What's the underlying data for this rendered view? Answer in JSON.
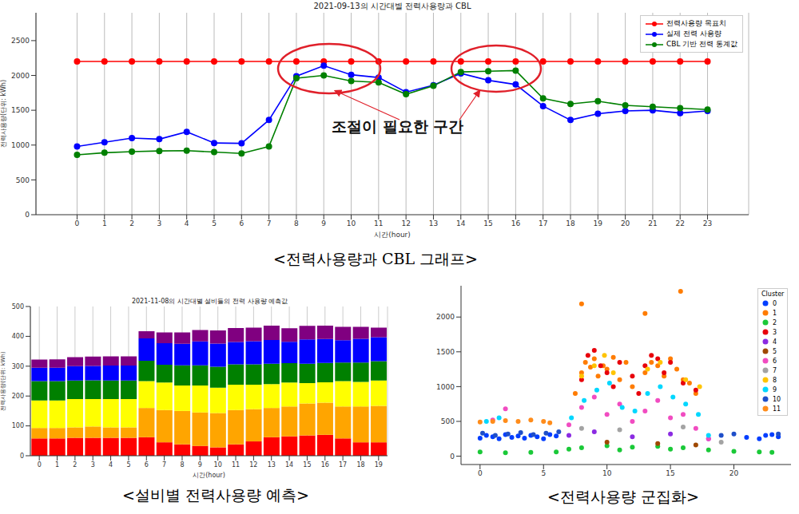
{
  "chart_data": [
    {
      "type": "line",
      "title": "2021-09-13의 시간대별 전력사용량과 CBL",
      "caption": "<전력사용량과 CBL 그래프>",
      "xlabel": "시간(hour)",
      "ylabel": "전력사용량(단위: kWh)",
      "annotations": [
        "조절이 필요한 구간"
      ],
      "x": [
        0,
        1,
        2,
        3,
        4,
        5,
        6,
        7,
        8,
        9,
        10,
        11,
        12,
        13,
        14,
        15,
        16,
        17,
        18,
        19,
        20,
        21,
        22,
        23
      ],
      "xlim": [
        -1.5,
        24.5
      ],
      "xticks": [
        0,
        1,
        2,
        3,
        4,
        5,
        6,
        7,
        8,
        9,
        10,
        11,
        12,
        13,
        14,
        15,
        16,
        17,
        18,
        19,
        20,
        21,
        22,
        23
      ],
      "ylim": [
        0,
        2900
      ],
      "yticks": [
        0,
        500,
        1000,
        1500,
        2000,
        2500
      ],
      "grid": true,
      "legend": "upper right",
      "marker": "o",
      "series": [
        {
          "name": "전력사용량 목표치",
          "color": "#ff0000",
          "values": [
            2200,
            2200,
            2200,
            2200,
            2200,
            2200,
            2200,
            2200,
            2200,
            2200,
            2200,
            2200,
            2200,
            2200,
            2200,
            2200,
            2200,
            2200,
            2200,
            2200,
            2200,
            2200,
            2200,
            2200
          ]
        },
        {
          "name": "실제 전력 사용량",
          "color": "#0000ff",
          "values": [
            980,
            1040,
            1100,
            1085,
            1190,
            1030,
            1025,
            1360,
            1990,
            2140,
            2010,
            1970,
            1760,
            1860,
            2030,
            1930,
            1870,
            1560,
            1360,
            1450,
            1490,
            1500,
            1460,
            1490
          ]
        },
        {
          "name": "CBL 기반 전력 통계값",
          "color": "#008000",
          "values": [
            860,
            890,
            905,
            915,
            920,
            900,
            880,
            980,
            1960,
            2000,
            1920,
            1900,
            1730,
            1850,
            2050,
            2060,
            2070,
            1670,
            1590,
            1630,
            1570,
            1550,
            1530,
            1510
          ]
        }
      ]
    },
    {
      "type": "bar",
      "title": "2021-11-08의 시간대별 설비들의 전력 사용량 예측값",
      "caption": "<설비별 전력사용량 예측>",
      "xlabel": "시간(hour)",
      "ylabel": "전력사용량(단위: kWh)",
      "stacked": true,
      "grid": true,
      "categories": [
        "0",
        "1",
        "2",
        "3",
        "4",
        "5",
        "6",
        "7",
        "8",
        "9",
        "10",
        "11",
        "12",
        "13",
        "14",
        "15",
        "16",
        "17",
        "18",
        "19"
      ],
      "ylim": [
        0,
        500
      ],
      "yticks": [
        0,
        100,
        200,
        300,
        400,
        500
      ],
      "series": [
        {
          "color": "#ff0000",
          "values": [
            58,
            58,
            60,
            60,
            60,
            60,
            62,
            45,
            38,
            33,
            28,
            38,
            48,
            62,
            65,
            68,
            70,
            58,
            45,
            45
          ]
        },
        {
          "color": "#ffa500",
          "values": [
            35,
            35,
            35,
            38,
            35,
            35,
            98,
            108,
            112,
            112,
            115,
            115,
            108,
            98,
            100,
            107,
            108,
            107,
            120,
            122
          ]
        },
        {
          "color": "#ffff00",
          "values": [
            92,
            92,
            95,
            92,
            95,
            95,
            90,
            92,
            85,
            90,
            85,
            85,
            82,
            80,
            80,
            68,
            68,
            85,
            82,
            85
          ]
        },
        {
          "color": "#008000",
          "values": [
            65,
            65,
            62,
            63,
            62,
            62,
            68,
            60,
            68,
            68,
            70,
            68,
            68,
            68,
            65,
            65,
            65,
            62,
            65,
            65
          ]
        },
        {
          "color": "#0000ff",
          "values": [
            45,
            45,
            48,
            48,
            50,
            50,
            75,
            72,
            72,
            80,
            78,
            75,
            78,
            80,
            72,
            82,
            80,
            75,
            80,
            80
          ]
        },
        {
          "color": "#800080",
          "values": [
            27,
            28,
            30,
            31,
            31,
            31,
            24,
            36,
            38,
            38,
            44,
            47,
            45,
            48,
            45,
            45,
            45,
            45,
            40,
            32
          ]
        }
      ]
    },
    {
      "type": "scatter",
      "caption": "<전력사용량 군집화>",
      "legend_title": "Cluster",
      "legend": "upper right",
      "grid": false,
      "xlim": [
        -1.5,
        24.5
      ],
      "xticks": [
        0,
        5,
        10,
        15,
        20
      ],
      "ylim": [
        -120,
        2450
      ],
      "yticks": [
        0,
        500,
        1000,
        1500,
        2000
      ],
      "series": [
        {
          "name": "0",
          "color": "#023eff",
          "x": [
            0,
            0.5,
            1,
            1.5,
            2,
            2.5,
            3,
            3.5,
            4,
            4.5,
            5,
            5.5,
            6,
            21,
            22,
            22.5,
            23,
            23.5
          ],
          "y": [
            260,
            300,
            280,
            250,
            310,
            270,
            290,
            260,
            300,
            280,
            250,
            310,
            290,
            270,
            250,
            300,
            310,
            280
          ]
        },
        {
          "name": "1",
          "color": "#ff7c00",
          "x": [
            8,
            8.3,
            8.7,
            9,
            9.3,
            9.7,
            10,
            10.5,
            11,
            11.5,
            12,
            13,
            13.5,
            14,
            14.5,
            15,
            15.5,
            16,
            16.5,
            17,
            8,
            13,
            15.8,
            7.5
          ],
          "y": [
            1200,
            1350,
            1280,
            1400,
            1150,
            1300,
            1250,
            1420,
            1100,
            1350,
            1000,
            1200,
            1350,
            1300,
            1150,
            1400,
            1250,
            1100,
            1050,
            900,
            2190,
            2050,
            2370,
            900
          ]
        },
        {
          "name": "2",
          "color": "#1ac938",
          "x": [
            0,
            2,
            4,
            6,
            8,
            10,
            12,
            14,
            16,
            18,
            20,
            22,
            23,
            7,
            11,
            15
          ],
          "y": [
            60,
            50,
            55,
            60,
            120,
            150,
            130,
            140,
            120,
            90,
            70,
            60,
            55,
            100,
            90,
            100
          ]
        },
        {
          "name": "3",
          "color": "#e8000b",
          "x": [
            8,
            8.5,
            9,
            9.5,
            10,
            10.5,
            11,
            12,
            13,
            13.5,
            14,
            14.5,
            15,
            16,
            17,
            12.5
          ],
          "y": [
            1100,
            1450,
            1520,
            1300,
            1200,
            1000,
            1350,
            1150,
            1300,
            1450,
            1400,
            1200,
            1350,
            1050,
            950,
            900
          ]
        },
        {
          "name": "4",
          "color": "#8b2be2",
          "x": [
            7,
            9,
            12,
            15,
            18
          ],
          "y": [
            300,
            350,
            280,
            320,
            250
          ]
        },
        {
          "name": "5",
          "color": "#9f4800",
          "x": [
            10,
            14,
            17
          ],
          "y": [
            200,
            180,
            160
          ]
        },
        {
          "name": "6",
          "color": "#f14cc1",
          "x": [
            7,
            8,
            9,
            10,
            11,
            12,
            13,
            14,
            15,
            16,
            17,
            18,
            2,
            1
          ],
          "y": [
            450,
            700,
            850,
            600,
            750,
            500,
            650,
            800,
            550,
            600,
            400,
            250,
            680,
            520
          ]
        },
        {
          "name": "7",
          "color": "#a3a3a3",
          "x": [
            8,
            11,
            16,
            19
          ],
          "y": [
            400,
            380,
            420,
            200
          ]
        },
        {
          "name": "8",
          "color": "#ffc400",
          "x": [
            8,
            9,
            10.5,
            13.2,
            14.2,
            16.2,
            17.3,
            9.8
          ],
          "y": [
            1150,
            1300,
            1200,
            1250,
            1350,
            1100,
            1000,
            1450
          ]
        },
        {
          "name": "9",
          "color": "#00d7ff",
          "x": [
            7.2,
            8.2,
            9.2,
            10.2,
            11.2,
            12.2,
            13.2,
            14.2,
            15.2,
            16.2,
            17.2,
            0.5,
            1.5,
            18
          ],
          "y": [
            550,
            800,
            950,
            1050,
            700,
            650,
            900,
            1000,
            850,
            750,
            600,
            500,
            550,
            300
          ]
        },
        {
          "name": "10",
          "color": "#1f4fc9",
          "x": [
            0.2,
            1.2,
            2.2,
            3.2,
            4.2,
            5.2,
            6.2,
            19,
            20,
            23.5
          ],
          "y": [
            330,
            300,
            320,
            340,
            310,
            330,
            350,
            300,
            320,
            320
          ]
        },
        {
          "name": "11",
          "color": "#ff8c1a",
          "x": [
            0,
            1,
            2,
            3,
            4,
            5,
            5.5
          ],
          "y": [
            490,
            500,
            510,
            500,
            520,
            500,
            480
          ]
        }
      ]
    }
  ]
}
